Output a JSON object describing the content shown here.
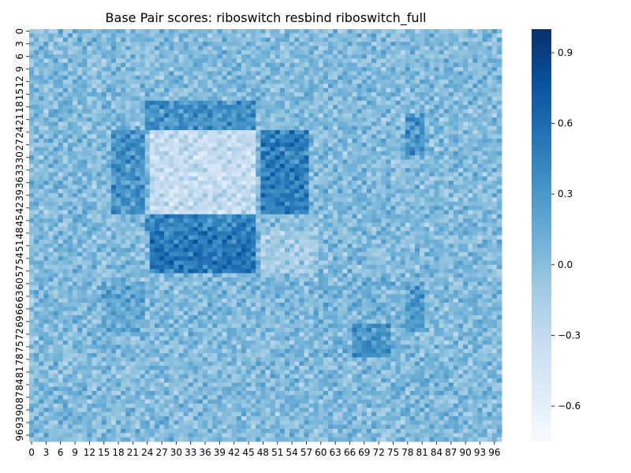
{
  "chart_data": {
    "type": "heatmap",
    "title": "Base Pair scores: riboswitch resbind riboswitch_full",
    "xlabel": "",
    "ylabel": "",
    "n_rows": 98,
    "n_cols": 98,
    "x_tick_labels": [
      "0",
      "3",
      "6",
      "9",
      "12",
      "15",
      "18",
      "21",
      "24",
      "27",
      "30",
      "33",
      "36",
      "39",
      "42",
      "45",
      "48",
      "51",
      "54",
      "57",
      "60",
      "63",
      "66",
      "69",
      "72",
      "75",
      "78",
      "81",
      "84",
      "87",
      "90",
      "93",
      "96"
    ],
    "y_tick_labels": [
      "0",
      "3",
      "6",
      "9",
      "12",
      "15",
      "18",
      "21",
      "24",
      "27",
      "30",
      "33",
      "36",
      "39",
      "42",
      "45",
      "48",
      "51",
      "54",
      "57",
      "60",
      "63",
      "66",
      "69",
      "72",
      "75",
      "78",
      "81",
      "84",
      "87",
      "90",
      "93",
      "96"
    ],
    "colorbar": {
      "vmin": -0.75,
      "vmax": 1.0,
      "ticks": [
        0.9,
        0.6,
        0.3,
        0.0,
        -0.3,
        -0.6
      ],
      "tick_labels": [
        "0.9",
        "0.6",
        "0.3",
        "0.0",
        "−0.3",
        "−0.6"
      ],
      "colormap": "Blues",
      "low_color": "#f7fbff",
      "high_color": "#08306b"
    },
    "background_value": 0.0,
    "regions": [
      {
        "rows": [
          24,
          44
        ],
        "cols": [
          25,
          47
        ],
        "value": -0.35
      },
      {
        "rows": [
          24,
          44
        ],
        "cols": [
          48,
          58
        ],
        "value": 0.45
      },
      {
        "rows": [
          48,
          58
        ],
        "cols": [
          25,
          47
        ],
        "value": 0.5
      },
      {
        "rows": [
          17,
          24
        ],
        "cols": [
          24,
          47
        ],
        "value": 0.3
      },
      {
        "rows": [
          24,
          44
        ],
        "cols": [
          17,
          24
        ],
        "value": 0.3
      },
      {
        "rows": [
          44,
          48
        ],
        "cols": [
          24,
          47
        ],
        "value": 0.4
      },
      {
        "rows": [
          48,
          58
        ],
        "cols": [
          48,
          60
        ],
        "value": -0.15
      },
      {
        "rows": [
          17,
          24
        ],
        "cols": [
          48,
          60
        ],
        "value": 0.0
      },
      {
        "rows": [
          58,
          78
        ],
        "cols": [
          60,
          78
        ],
        "value": 0.05
      },
      {
        "rows": [
          70,
          78
        ],
        "cols": [
          67,
          75
        ],
        "value": 0.3
      },
      {
        "rows": [
          60,
          72
        ],
        "cols": [
          78,
          82
        ],
        "value": 0.25
      },
      {
        "rows": [
          20,
          30
        ],
        "cols": [
          78,
          82
        ],
        "value": 0.3
      },
      {
        "rows": [
          60,
          72
        ],
        "cols": [
          15,
          24
        ],
        "value": 0.15
      }
    ]
  }
}
